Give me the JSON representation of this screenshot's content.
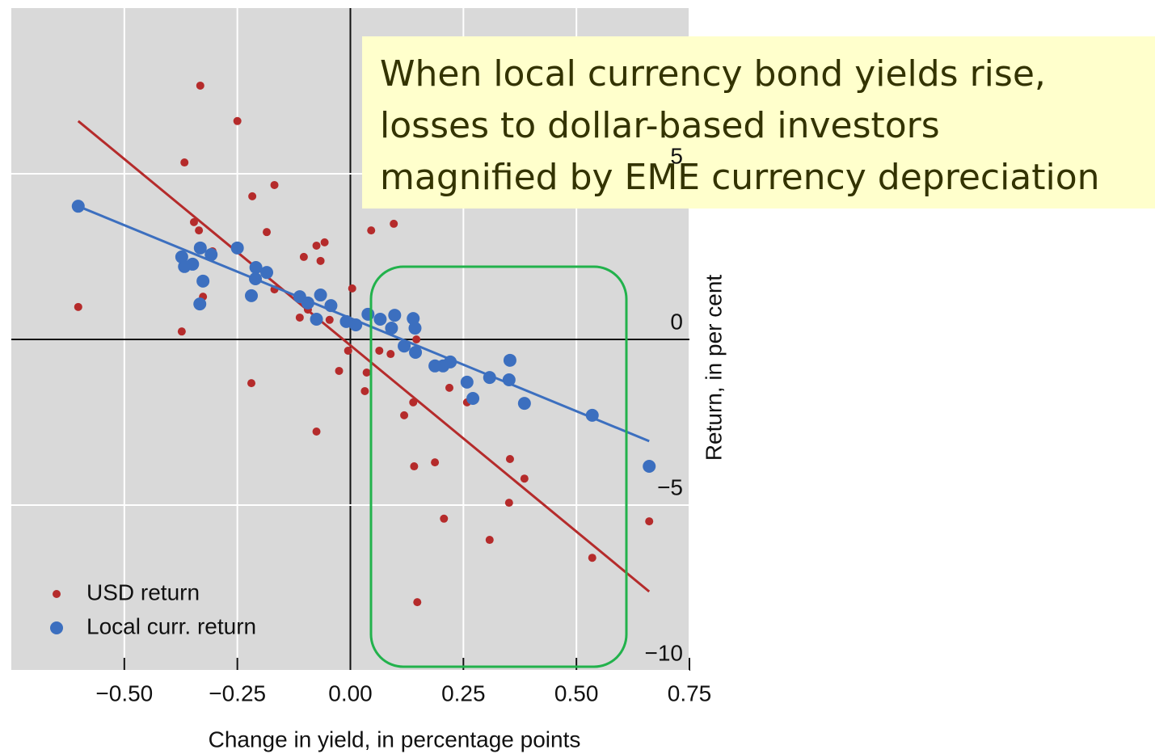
{
  "chart_data": {
    "type": "scatter",
    "xlabel": "Change in yield, in percentage points",
    "ylabel": "Return, in per cent",
    "xlim": [
      -0.75,
      0.75
    ],
    "ylim": [
      -10,
      10
    ],
    "xticks": [
      {
        "value": -0.5,
        "label": "−0.50"
      },
      {
        "value": -0.25,
        "label": "−0.25"
      },
      {
        "value": 0,
        "label": "0.00"
      },
      {
        "value": 0.25,
        "label": "0.25"
      },
      {
        "value": 0.5,
        "label": "0.50"
      },
      {
        "value": 0.75,
        "label": "0.75"
      }
    ],
    "yticks": [
      {
        "value": -10,
        "label": "−10"
      },
      {
        "value": -5,
        "label": "−5"
      },
      0,
      5
    ],
    "grid": true,
    "legend": "lower left",
    "annotation": [
      "When local currency bond yields rise,",
      "losses to dollar-based investors",
      "magnified by EME currency depreciation"
    ],
    "series": [
      {
        "name": "USD return",
        "color": "#b52b2b",
        "x": [
          -0.332,
          -0.25,
          -0.367,
          -0.217,
          -0.168,
          -0.602,
          -0.346,
          -0.335,
          -0.185,
          -0.305,
          -0.103,
          -0.075,
          -0.057,
          -0.066,
          -0.209,
          -0.168,
          -0.326,
          -0.373,
          0.046,
          0.096,
          0.004,
          -0.112,
          -0.094,
          -0.046,
          -0.005,
          0.064,
          -0.025,
          0.036,
          0.032,
          -0.219,
          -0.075,
          0.119,
          0.139,
          0.146,
          0.089,
          0.219,
          0.258,
          0.141,
          0.187,
          0.353,
          0.385,
          0.351,
          0.207,
          0.308,
          0.535,
          0.661,
          0.148
        ],
        "values": [
          7.66,
          6.59,
          5.34,
          4.32,
          4.66,
          0.98,
          3.54,
          3.29,
          3.24,
          2.66,
          2.49,
          2.83,
          2.93,
          2.37,
          2.24,
          1.51,
          1.29,
          0.24,
          3.29,
          3.49,
          1.54,
          0.66,
          0.9,
          0.59,
          -0.34,
          -0.34,
          -0.95,
          -1.0,
          -1.56,
          -1.32,
          -2.78,
          -2.29,
          -1.9,
          0,
          -0.44,
          -1.46,
          -1.9,
          -3.83,
          -3.71,
          -3.61,
          -4.2,
          -4.93,
          -5.41,
          -6.05,
          -6.59,
          -5.49,
          -7.93
        ],
        "trend": {
          "x": [
            -0.602,
            0.661
          ],
          "values": [
            6.59,
            -7.61
          ]
        }
      },
      {
        "name": "Local curr. return",
        "color": "#3c6fbf",
        "x": [
          -0.602,
          -0.25,
          -0.332,
          -0.373,
          -0.349,
          -0.367,
          -0.308,
          -0.326,
          -0.333,
          -0.209,
          -0.185,
          -0.21,
          -0.219,
          -0.112,
          -0.094,
          -0.066,
          -0.043,
          -0.075,
          -0.009,
          0.012,
          0.039,
          0.066,
          0.098,
          0.139,
          0.091,
          0.143,
          0.119,
          0.144,
          0.205,
          0.221,
          0.187,
          0.258,
          0.271,
          0.308,
          0.353,
          0.351,
          0.385,
          0.535,
          0.661
        ],
        "values": [
          4.02,
          2.76,
          2.76,
          2.49,
          2.27,
          2.2,
          2.56,
          1.76,
          1.07,
          2.17,
          2.02,
          1.83,
          1.32,
          1.29,
          1.1,
          1.34,
          1.02,
          0.61,
          0.54,
          0.44,
          0.76,
          0.61,
          0.73,
          0.63,
          0.34,
          0.34,
          -0.2,
          -0.39,
          -0.8,
          -0.68,
          -0.8,
          -1.29,
          -1.78,
          -1.15,
          -0.63,
          -1.22,
          -1.93,
          -2.29,
          -3.83
        ],
        "trend": {
          "x": [
            -0.602,
            0.661
          ],
          "values": [
            4.02,
            -3.07
          ]
        }
      }
    ]
  }
}
